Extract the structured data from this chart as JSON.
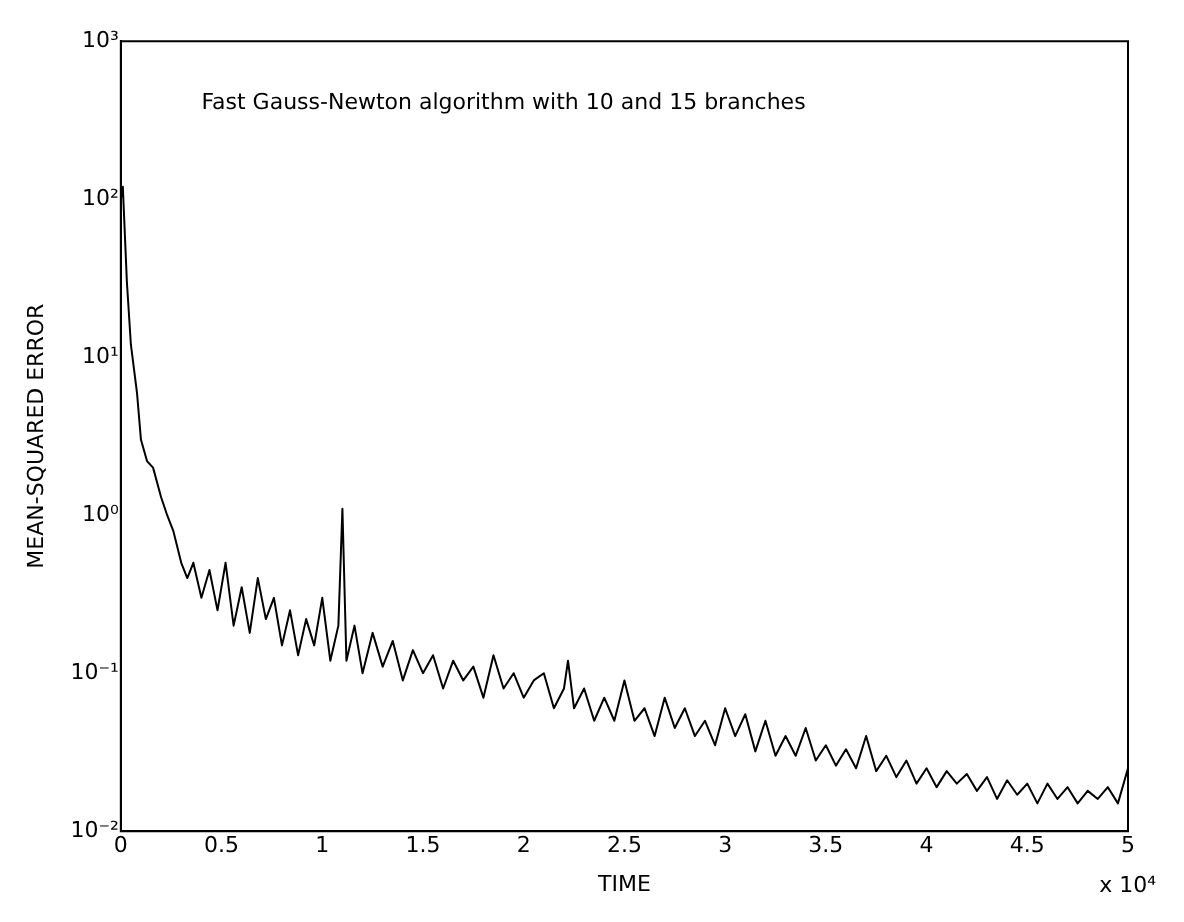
{
  "chart_data": {
    "type": "line",
    "xlabel": "TIME",
    "ylabel": "MEAN-SQUARED ERROR",
    "annotations": [
      "Fast Gauss-Newton algorithm with 10 and 15 branches",
      "x 10⁴"
    ],
    "log": "y",
    "grid": false,
    "legend": false,
    "marker": "none",
    "line_style": "solid",
    "xlim": [
      0,
      5
    ],
    "xticks": [
      0,
      0.5,
      1,
      1.5,
      2,
      2.5,
      3,
      3.5,
      4,
      4.5,
      5
    ],
    "ylim": [
      0.01,
      1000
    ],
    "yticks": [
      {
        "value": 0.01,
        "label": "10⁻²"
      },
      {
        "value": 0.1,
        "label": "10⁻¹"
      },
      {
        "value": 1,
        "label": "10⁰"
      },
      {
        "value": 10,
        "label": "10¹"
      },
      {
        "value": 100,
        "label": "10²"
      },
      {
        "value": 1000,
        "label": "10³"
      }
    ],
    "series": [
      {
        "color": "#000000",
        "x": [
          0,
          0.01,
          0.03,
          0.05,
          0.08,
          0.1,
          0.13,
          0.16,
          0.2,
          0.23,
          0.26,
          0.3,
          0.33,
          0.36,
          0.4,
          0.44,
          0.48,
          0.52,
          0.56,
          0.6,
          0.64,
          0.68,
          0.72,
          0.76,
          0.8,
          0.84,
          0.88,
          0.92,
          0.96,
          1,
          1.04,
          1.08,
          1.1,
          1.12,
          1.16,
          1.2,
          1.25,
          1.3,
          1.35,
          1.4,
          1.45,
          1.5,
          1.55,
          1.6,
          1.65,
          1.7,
          1.75,
          1.8,
          1.85,
          1.9,
          1.95,
          2,
          2.05,
          2.1,
          2.15,
          2.2,
          2.22,
          2.25,
          2.3,
          2.35,
          2.4,
          2.45,
          2.5,
          2.55,
          2.6,
          2.65,
          2.7,
          2.75,
          2.8,
          2.85,
          2.9,
          2.95,
          3,
          3.05,
          3.1,
          3.15,
          3.2,
          3.25,
          3.3,
          3.35,
          3.4,
          3.45,
          3.5,
          3.55,
          3.6,
          3.65,
          3.7,
          3.75,
          3.8,
          3.85,
          3.9,
          3.95,
          4,
          4.05,
          4.1,
          4.15,
          4.2,
          4.25,
          4.3,
          4.35,
          4.4,
          4.45,
          4.5,
          4.55,
          4.6,
          4.65,
          4.7,
          4.75,
          4.8,
          4.85,
          4.9,
          4.95,
          5
        ],
        "values": [
          100,
          120,
          30,
          12,
          6,
          3,
          2.2,
          2,
          1.3,
          1,
          0.8,
          0.5,
          0.4,
          0.5,
          0.3,
          0.45,
          0.25,
          0.5,
          0.2,
          0.35,
          0.18,
          0.4,
          0.22,
          0.3,
          0.15,
          0.25,
          0.13,
          0.22,
          0.15,
          0.3,
          0.12,
          0.2,
          1.1,
          0.12,
          0.2,
          0.1,
          0.18,
          0.11,
          0.16,
          0.09,
          0.14,
          0.1,
          0.13,
          0.08,
          0.12,
          0.09,
          0.11,
          0.07,
          0.13,
          0.08,
          0.1,
          0.07,
          0.09,
          0.1,
          0.06,
          0.08,
          0.12,
          0.06,
          0.08,
          0.05,
          0.07,
          0.05,
          0.09,
          0.05,
          0.06,
          0.04,
          0.07,
          0.045,
          0.06,
          0.04,
          0.05,
          0.035,
          0.06,
          0.04,
          0.055,
          0.032,
          0.05,
          0.03,
          0.04,
          0.03,
          0.045,
          0.028,
          0.035,
          0.026,
          0.033,
          0.025,
          0.04,
          0.024,
          0.03,
          0.022,
          0.028,
          0.02,
          0.025,
          0.019,
          0.024,
          0.02,
          0.023,
          0.018,
          0.022,
          0.016,
          0.021,
          0.017,
          0.02,
          0.015,
          0.02,
          0.016,
          0.019,
          0.015,
          0.018,
          0.016,
          0.019,
          0.015,
          0.025
        ]
      }
    ]
  }
}
